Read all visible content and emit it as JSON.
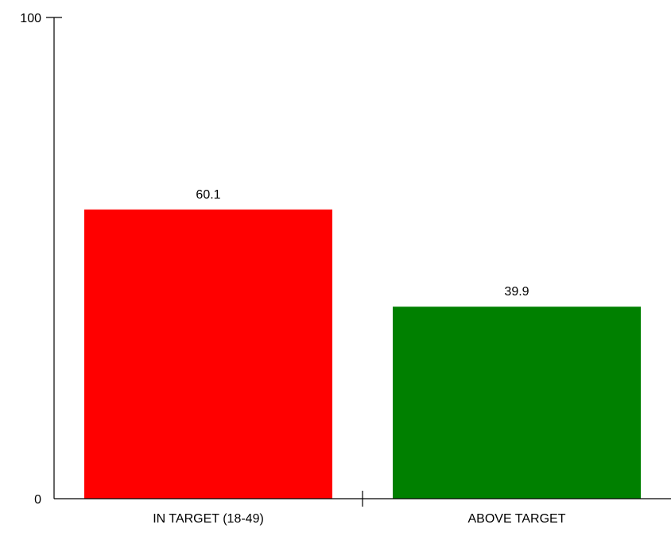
{
  "chart_data": {
    "type": "bar",
    "categories": [
      "IN TARGET (18-49)",
      "ABOVE TARGET"
    ],
    "values": [
      60.1,
      39.9
    ],
    "data_labels": [
      "60.1",
      "39.9"
    ],
    "colors": [
      "#ff0000",
      "#008000"
    ],
    "ylim": [
      0,
      100
    ],
    "y_ticks": [
      {
        "value": 0,
        "label": "0"
      },
      {
        "value": 100,
        "label": "100"
      }
    ],
    "grid": false,
    "legend": "none"
  }
}
